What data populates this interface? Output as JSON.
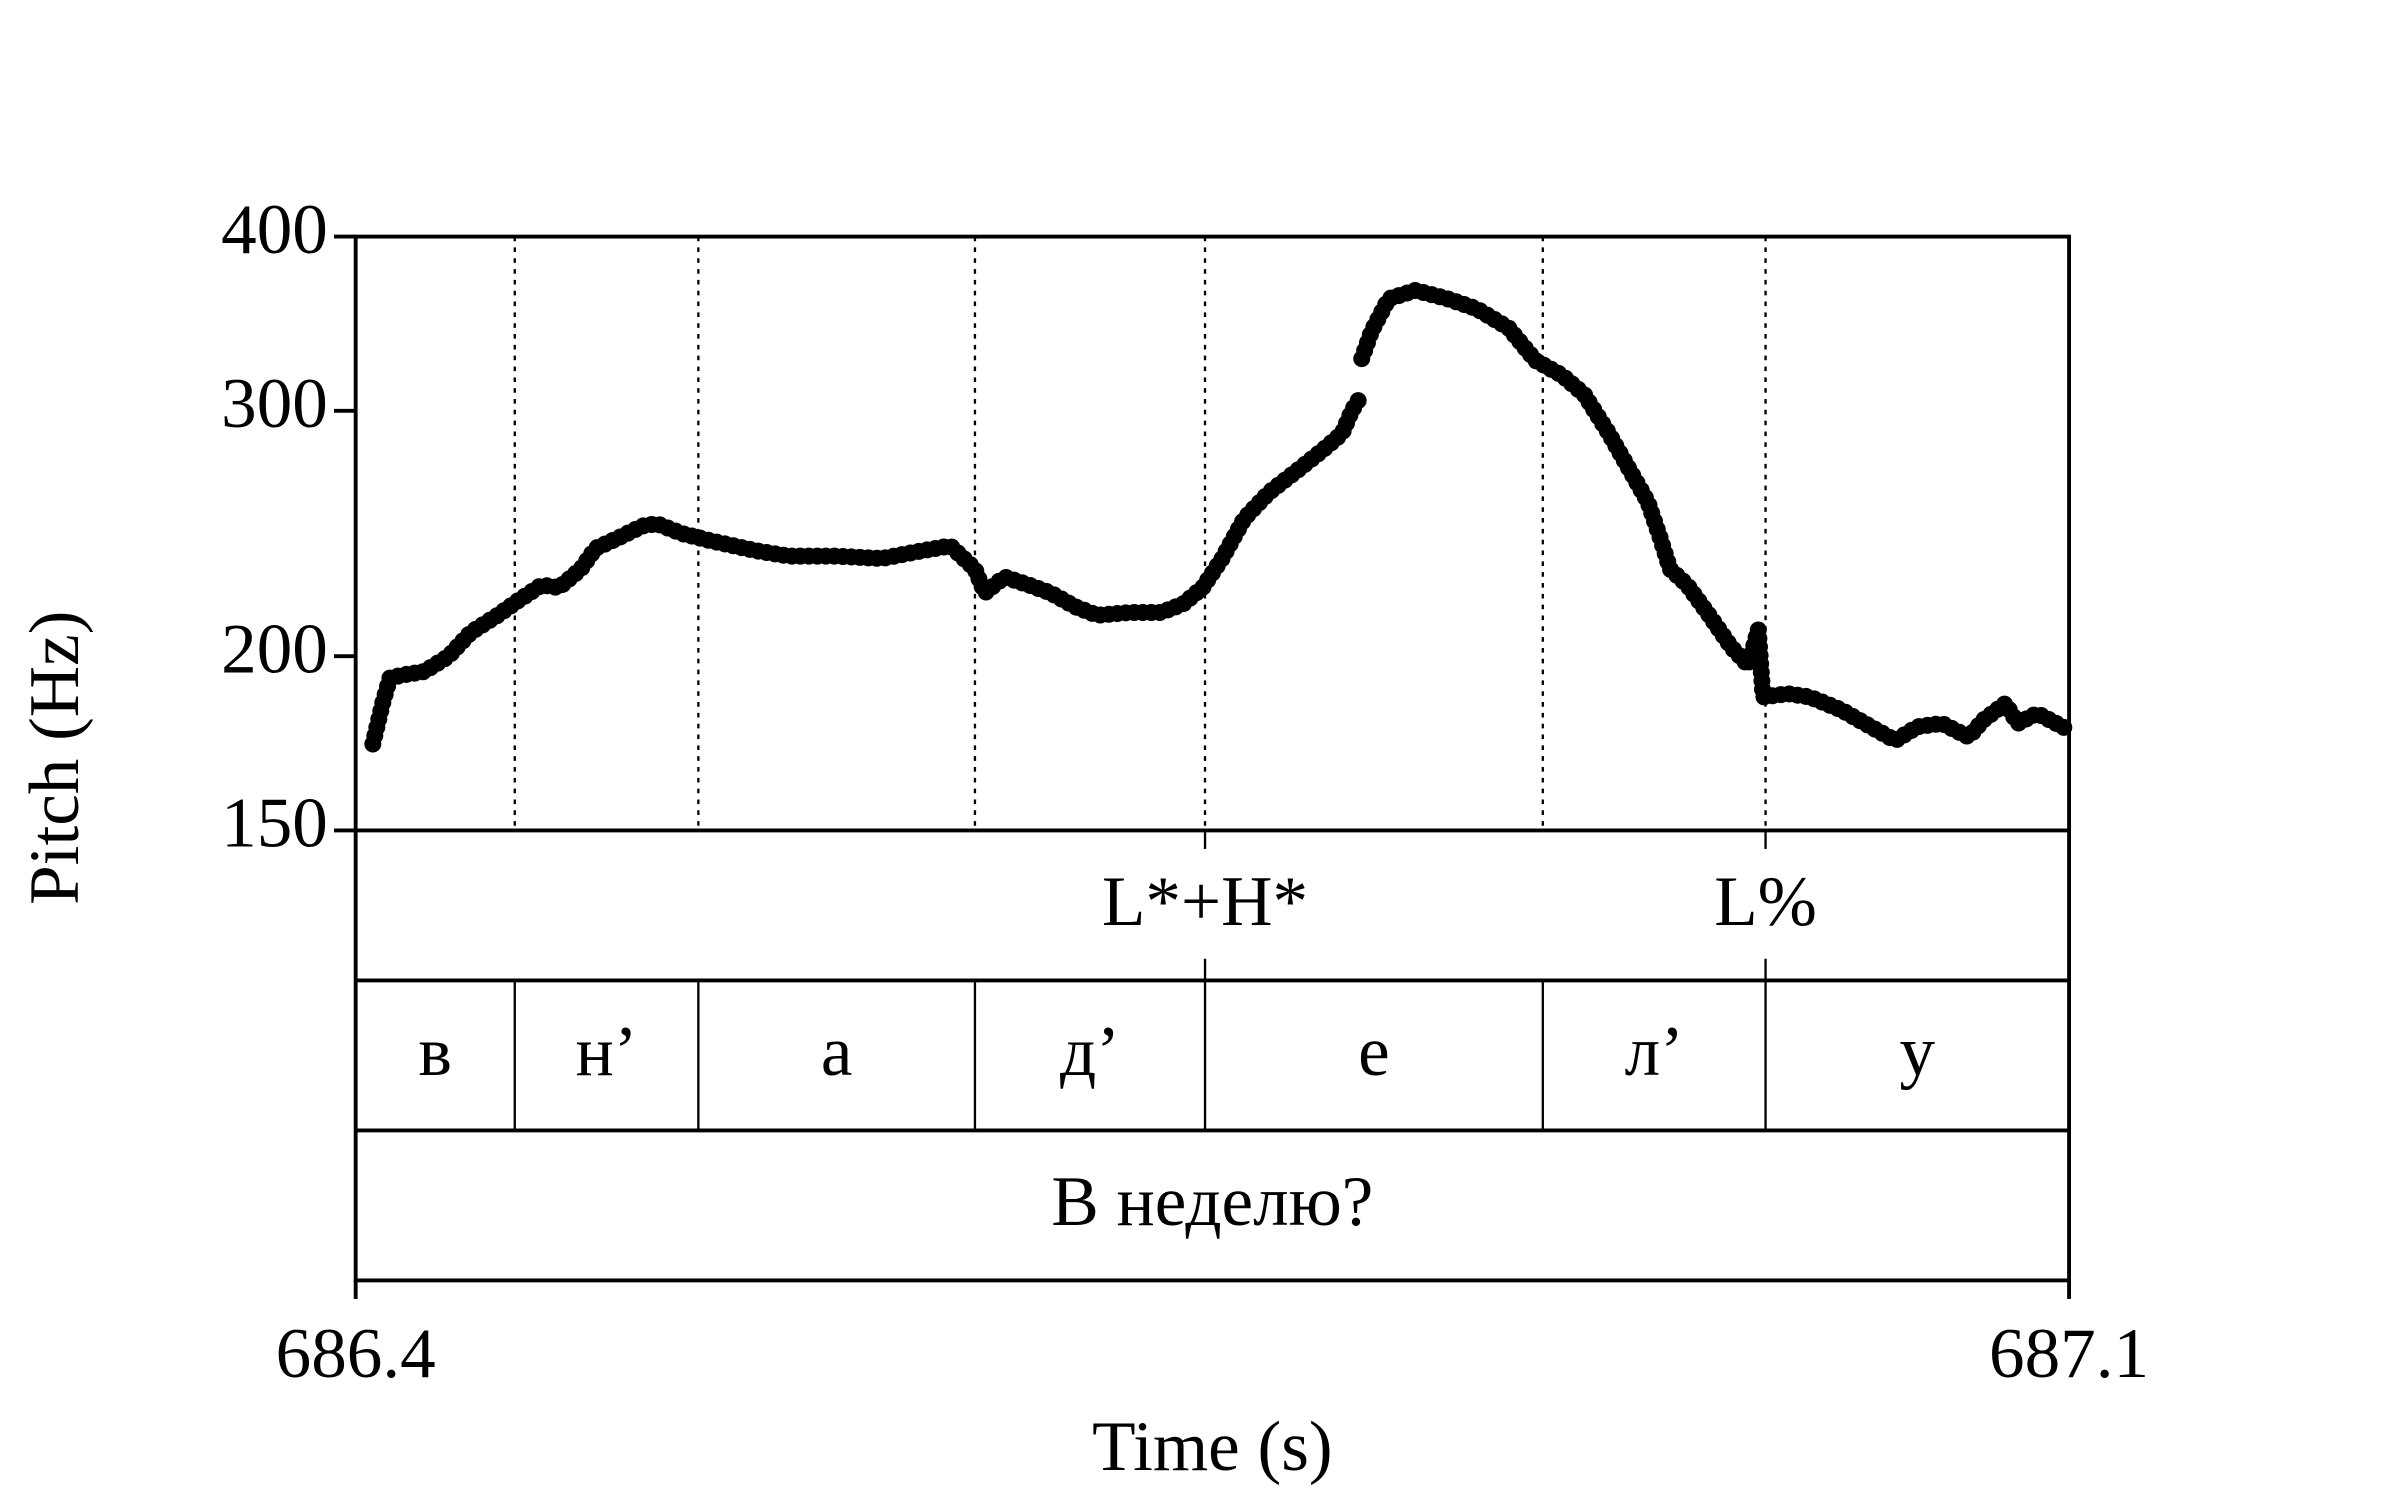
{
  "chart_data": {
    "type": "line",
    "xlabel": "Time (s)",
    "ylabel": "Pitch (Hz)",
    "yscale": "log",
    "color": "#000000",
    "xlim": [
      686.4,
      687.1
    ],
    "xticks": [
      686.4,
      687.1
    ],
    "ylim": [
      150,
      400
    ],
    "yticks": [
      150,
      200,
      300,
      400
    ],
    "x": [
      686.407,
      686.411,
      686.414,
      686.42,
      686.428,
      686.438,
      686.447,
      686.458,
      686.466,
      686.476,
      686.483,
      686.492,
      686.498,
      686.507,
      686.517,
      686.523,
      686.533,
      686.545,
      686.564,
      686.577,
      686.596,
      686.615,
      686.631,
      686.643,
      686.653,
      686.657,
      686.665,
      686.675,
      686.684,
      686.694,
      686.703,
      686.716,
      686.729,
      686.738,
      686.746,
      686.754,
      686.763,
      686.773,
      686.786,
      686.795,
      686.803,
      686.807,
      686.81,
      686.8105,
      686.811,
      686.815,
      686.822,
      686.833,
      686.846,
      686.858,
      686.871,
      686.882,
      686.893,
      686.902,
      686.912,
      686.921,
      686.928,
      686.933,
      686.937,
      686.944,
      686.953,
      686.962,
      686.969,
      686.973,
      686.975,
      686.985,
      686.994,
      687.007,
      687.019,
      687.029,
      687.038,
      687.048,
      687.059,
      687.065,
      687.074,
      687.079,
      687.087,
      687.1
    ],
    "values": [
      173,
      185,
      193,
      194,
      195,
      200,
      208,
      214,
      219,
      225,
      224,
      231,
      239,
      243,
      248,
      249,
      245,
      242,
      238,
      236,
      236,
      235,
      238,
      240,
      231,
      222,
      228,
      225,
      222,
      217,
      214,
      215,
      215,
      218,
      224,
      235,
      251,
      262,
      273,
      281,
      289,
      300,
      306,
      null,
      327,
      342,
      361,
      366,
      361,
      355,
      344,
      326,
      318,
      308,
      289,
      271,
      258,
      243,
      231,
      225,
      214,
      203,
      197,
      209,
      187,
      188,
      187,
      183,
      178,
      174,
      178,
      179,
      175,
      180,
      185,
      179,
      182,
      177
    ],
    "tiers": [
      {
        "points": [
          686.747,
          686.976
        ],
        "labels": [
          "L*+H*",
          "L%"
        ]
      },
      {
        "boundaries": [
          686.465,
          686.54,
          686.653,
          686.747,
          686.885,
          686.976
        ],
        "labels": [
          "в",
          "н’",
          "а",
          "д’",
          "е",
          "л’",
          "у"
        ]
      },
      {
        "boundaries": [],
        "labels": [
          "В неделю?"
        ]
      }
    ]
  }
}
